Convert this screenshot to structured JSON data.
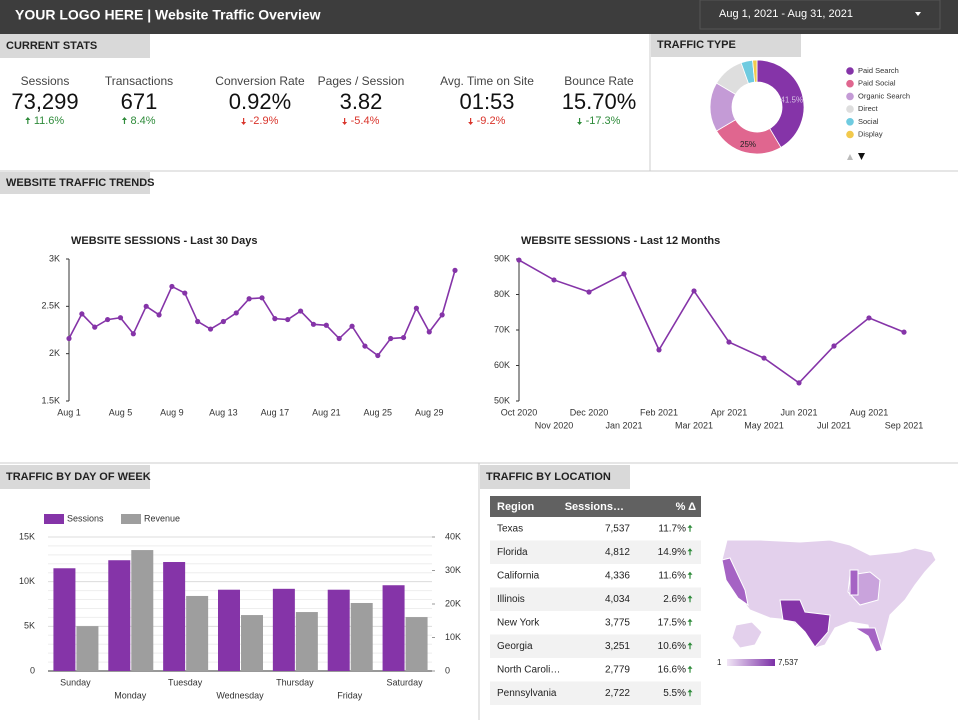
{
  "header": {
    "title": "YOUR LOGO HERE | Website Traffic Overview",
    "date_range": "Aug 1, 2021 - Aug 31, 2021"
  },
  "sections": {
    "current_stats": "CURRENT STATS",
    "traffic_type": "TRAFFIC TYPE",
    "trends": "WEBSITE TRAFFIC TRENDS",
    "day_of_week": "TRAFFIC BY DAY OF WEEK",
    "location": "TRAFFIC BY LOCATION"
  },
  "stats": [
    {
      "label": "Sessions",
      "value": "73,299",
      "change": "11.6%",
      "direction": "up",
      "color": "#2e8b3a"
    },
    {
      "label": "Transactions",
      "value": "671",
      "change": "8.4%",
      "direction": "up",
      "color": "#2e8b3a"
    },
    {
      "label": "Conversion Rate",
      "value": "0.92%",
      "change": "-2.9%",
      "direction": "down",
      "color": "#d9342b"
    },
    {
      "label": "Pages / Session",
      "value": "3.82",
      "change": "-5.4%",
      "direction": "down",
      "color": "#d9342b"
    },
    {
      "label": "Avg. Time on Site",
      "value": "01:53",
      "change": "-9.2%",
      "direction": "down",
      "color": "#d9342b"
    },
    {
      "label": "Bounce Rate",
      "value": "15.70%",
      "change": "-17.3%",
      "direction": "down",
      "color": "#2e8b3a"
    }
  ],
  "chart_data": [
    {
      "type": "pie",
      "categories": [
        "Paid Search",
        "Paid Social",
        "Organic Search",
        "Direct",
        "Social",
        "Display"
      ],
      "values": [
        41.5,
        25,
        17,
        11,
        4,
        1.5
      ],
      "value_labels": [
        "41.5%",
        "25%",
        null,
        null,
        null,
        null
      ],
      "colors": [
        "#8534a8",
        "#e0668f",
        "#c49bd6",
        "#dedede",
        "#6fcbe0",
        "#f2c94c"
      ]
    },
    {
      "type": "line",
      "title": "WEBSITE SESSIONS - Last 30 Days",
      "color": "#8534a8",
      "categories": [
        "Aug 1",
        null,
        null,
        null,
        "Aug 5",
        null,
        null,
        null,
        "Aug 9",
        null,
        null,
        null,
        "Aug 13",
        null,
        null,
        null,
        "Aug 17",
        null,
        null,
        null,
        "Aug 21",
        null,
        null,
        null,
        "Aug 25",
        null,
        null,
        null,
        "Aug 29",
        null,
        null
      ],
      "values": [
        2160,
        2420,
        2280,
        2360,
        2380,
        2210,
        2500,
        2410,
        2710,
        2640,
        2340,
        2260,
        2340,
        2430,
        2580,
        2590,
        2370,
        2360,
        2450,
        2310,
        2300,
        2160,
        2290,
        2080,
        1980,
        2160,
        2170,
        2480,
        2230,
        2410,
        2880
      ],
      "ylim": [
        1500,
        3000
      ],
      "yticks": [
        {
          "value": 1500,
          "label": "1.5K"
        },
        {
          "value": 2000,
          "label": "2K"
        },
        {
          "value": 2500,
          "label": "2.5K"
        },
        {
          "value": 3000,
          "label": "3K"
        }
      ]
    },
    {
      "type": "line",
      "title": "WEBSITE SESSIONS - Last 12 Months",
      "color": "#8534a8",
      "categories": [
        "Oct 2020",
        "Nov 2020",
        "Dec 2020",
        "Jan 2021",
        "Feb 2021",
        "Mar 2021",
        "Apr 2021",
        "May 2021",
        "Jun 2021",
        "Jul 2021",
        "Aug 2021",
        "Sep 2021"
      ],
      "values": [
        89700,
        84100,
        80700,
        85800,
        64400,
        81000,
        66600,
        62100,
        55100,
        65500,
        73400,
        69400
      ],
      "ylim": [
        50000,
        90000
      ],
      "yticks": [
        {
          "value": 50000,
          "label": "50K"
        },
        {
          "value": 60000,
          "label": "60K"
        },
        {
          "value": 70000,
          "label": "70K"
        },
        {
          "value": 80000,
          "label": "80K"
        },
        {
          "value": 90000,
          "label": "90K"
        }
      ]
    },
    {
      "type": "bar",
      "categories": [
        "Sunday",
        "Monday",
        "Tuesday",
        "Wednesday",
        "Thursday",
        "Friday",
        "Saturday"
      ],
      "series": [
        {
          "name": "Sessions",
          "color": "#8534a8",
          "values": [
            11500,
            12400,
            12200,
            9100,
            9200,
            9100,
            9600
          ]
        },
        {
          "name": "Revenue",
          "color": "#9e9e9e",
          "axis": "y2",
          "values": [
            13400,
            36100,
            22400,
            16700,
            17600,
            20300,
            16100
          ]
        }
      ],
      "ylim": [
        0,
        15000
      ],
      "yticks": [
        0,
        {
          "value": 5000,
          "label": "5K"
        },
        {
          "value": 10000,
          "label": "10K"
        },
        {
          "value": 15000,
          "label": "15K"
        }
      ],
      "y2lim": [
        0,
        40000
      ],
      "y2ticks": [
        0,
        {
          "value": 10000,
          "label": "10K"
        },
        {
          "value": 20000,
          "label": "20K"
        },
        {
          "value": 30000,
          "label": "30K"
        },
        {
          "value": 40000,
          "label": "40K"
        }
      ],
      "grid": true,
      "legend": "top-left"
    }
  ],
  "table": {
    "columns": [
      "Region",
      "Sessions…",
      "% Δ"
    ],
    "rows": [
      [
        "Texas",
        "7,537",
        "11.7%"
      ],
      [
        "Florida",
        "4,812",
        "14.9%"
      ],
      [
        "California",
        "4,336",
        "11.6%"
      ],
      [
        "Illinois",
        "4,034",
        "2.6%"
      ],
      [
        "New York",
        "3,775",
        "17.5%"
      ],
      [
        "Georgia",
        "3,251",
        "10.6%"
      ],
      [
        "North Caroli…",
        "2,779",
        "16.6%"
      ],
      [
        "Pennsylvania",
        "2,722",
        "5.5%"
      ]
    ]
  },
  "map": {
    "legend_min": "1",
    "legend_max": "7,537"
  }
}
